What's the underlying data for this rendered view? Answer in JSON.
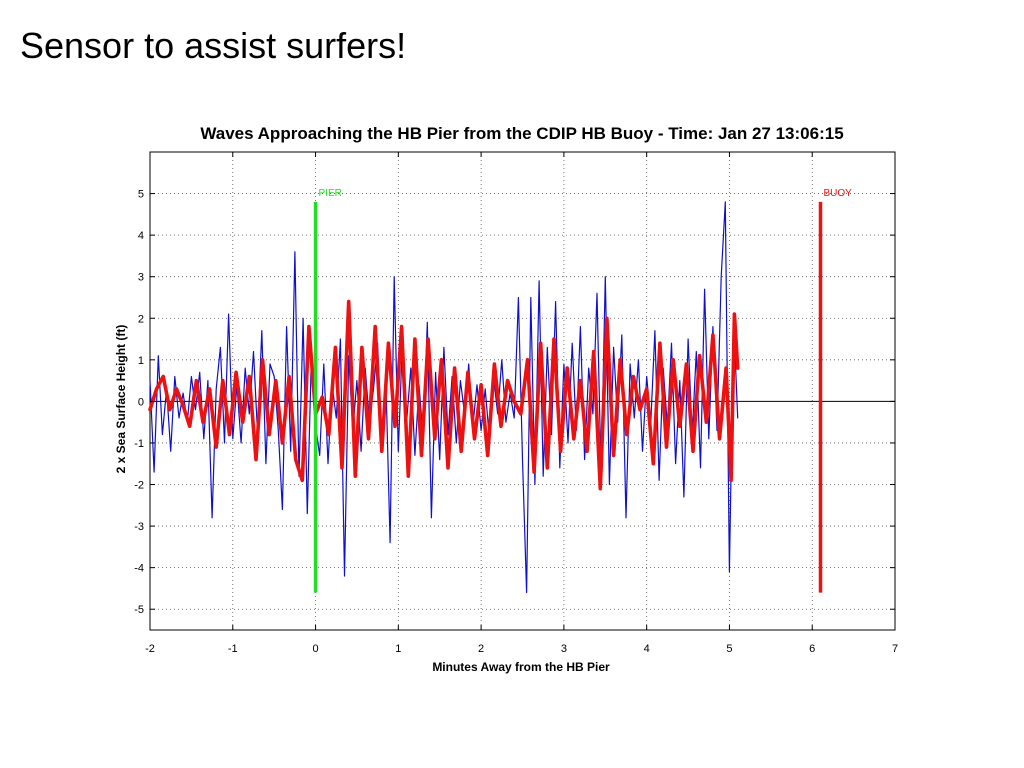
{
  "slide": {
    "title": "Sensor to assist surfers!"
  },
  "chart_data": {
    "type": "line",
    "title": "Waves Approaching the HB Pier from the CDIP HB Buoy  -  Time: Jan 27 13:06:15",
    "xlabel": "Minutes Away from the HB Pier",
    "ylabel": "2 x Sea Surface Height  (ft)",
    "xlim": [
      -2,
      7
    ],
    "ylim": [
      -5.5,
      6.0
    ],
    "xticks": [
      -2,
      -1,
      0,
      1,
      2,
      3,
      4,
      5,
      6,
      7
    ],
    "yticks": [
      -5,
      -4,
      -3,
      -2,
      -1,
      0,
      1,
      2,
      3,
      4,
      5
    ],
    "grid": true,
    "zero_line": true,
    "colors": {
      "blue_series": "#1010cc",
      "red_series": "#ee1111",
      "pier": "#22dd22",
      "buoy": "#ee1111"
    },
    "series": [
      {
        "color": "#1010cc",
        "points": [
          [
            -2.0,
            0.5
          ],
          [
            -1.95,
            -1.7
          ],
          [
            -1.9,
            1.1
          ],
          [
            -1.85,
            -0.8
          ],
          [
            -1.8,
            0.3
          ],
          [
            -1.75,
            -1.2
          ],
          [
            -1.7,
            0.6
          ],
          [
            -1.65,
            -0.4
          ],
          [
            -1.6,
            0.2
          ],
          [
            -1.55,
            -0.5
          ],
          [
            -1.5,
            0.6
          ],
          [
            -1.45,
            -0.2
          ],
          [
            -1.4,
            0.7
          ],
          [
            -1.35,
            -0.9
          ],
          [
            -1.3,
            0.5
          ],
          [
            -1.25,
            -2.8
          ],
          [
            -1.2,
            0.3
          ],
          [
            -1.15,
            1.3
          ],
          [
            -1.1,
            -1.0
          ],
          [
            -1.05,
            2.1
          ],
          [
            -1.0,
            -0.9
          ],
          [
            -0.95,
            0.4
          ],
          [
            -0.9,
            -1.0
          ],
          [
            -0.85,
            0.8
          ],
          [
            -0.8,
            -0.3
          ],
          [
            -0.75,
            1.2
          ],
          [
            -0.7,
            -0.8
          ],
          [
            -0.65,
            1.7
          ],
          [
            -0.6,
            -1.5
          ],
          [
            -0.55,
            0.9
          ],
          [
            -0.5,
            0.6
          ],
          [
            -0.45,
            -0.7
          ],
          [
            -0.4,
            -2.6
          ],
          [
            -0.35,
            1.8
          ],
          [
            -0.3,
            -1.2
          ],
          [
            -0.25,
            3.6
          ],
          [
            -0.2,
            -1.8
          ],
          [
            -0.15,
            2.0
          ],
          [
            -0.1,
            -2.7
          ],
          [
            -0.05,
            1.1
          ],
          [
            0.0,
            -0.6
          ],
          [
            0.05,
            -1.3
          ],
          [
            0.1,
            0.9
          ],
          [
            0.15,
            -1.5
          ],
          [
            0.2,
            0.4
          ],
          [
            0.25,
            -0.4
          ],
          [
            0.3,
            1.5
          ],
          [
            0.35,
            -4.2
          ],
          [
            0.4,
            1.1
          ],
          [
            0.45,
            -0.7
          ],
          [
            0.5,
            0.5
          ],
          [
            0.55,
            -1.2
          ],
          [
            0.6,
            0.8
          ],
          [
            0.65,
            -0.5
          ],
          [
            0.7,
            0.3
          ],
          [
            0.75,
            1.4
          ],
          [
            0.8,
            -1.1
          ],
          [
            0.85,
            0.5
          ],
          [
            0.9,
            -3.4
          ],
          [
            0.95,
            3.0
          ],
          [
            1.0,
            -1.2
          ],
          [
            1.05,
            1.5
          ],
          [
            1.1,
            -0.5
          ],
          [
            1.15,
            0.8
          ],
          [
            1.2,
            -1.3
          ],
          [
            1.25,
            0.4
          ],
          [
            1.3,
            -0.9
          ],
          [
            1.35,
            1.9
          ],
          [
            1.4,
            -2.8
          ],
          [
            1.45,
            0.7
          ],
          [
            1.5,
            -1.4
          ],
          [
            1.55,
            1.3
          ],
          [
            1.6,
            -0.8
          ],
          [
            1.65,
            0.6
          ],
          [
            1.7,
            -1.0
          ],
          [
            1.75,
            0.5
          ],
          [
            1.8,
            -0.3
          ],
          [
            1.85,
            0.9
          ],
          [
            1.9,
            -0.6
          ],
          [
            1.95,
            0.4
          ],
          [
            2.0,
            -0.7
          ],
          [
            2.05,
            0.3
          ],
          [
            2.1,
            -0.9
          ],
          [
            2.15,
            0.6
          ],
          [
            2.2,
            -0.3
          ],
          [
            2.25,
            1.0
          ],
          [
            2.3,
            -0.5
          ],
          [
            2.35,
            0.2
          ],
          [
            2.4,
            -0.4
          ],
          [
            2.45,
            2.5
          ],
          [
            2.5,
            -1.4
          ],
          [
            2.55,
            -4.6
          ],
          [
            2.6,
            2.5
          ],
          [
            2.65,
            -2.0
          ],
          [
            2.7,
            2.9
          ],
          [
            2.75,
            -1.8
          ],
          [
            2.8,
            1.3
          ],
          [
            2.85,
            -0.8
          ],
          [
            2.9,
            2.4
          ],
          [
            2.95,
            -1.6
          ],
          [
            3.0,
            0.9
          ],
          [
            3.05,
            -1.0
          ],
          [
            3.1,
            1.4
          ],
          [
            3.15,
            -0.7
          ],
          [
            3.2,
            1.8
          ],
          [
            3.25,
            -1.4
          ],
          [
            3.3,
            0.8
          ],
          [
            3.35,
            -0.3
          ],
          [
            3.4,
            2.6
          ],
          [
            3.45,
            -1.8
          ],
          [
            3.5,
            3.0
          ],
          [
            3.55,
            -2.0
          ],
          [
            3.6,
            1.3
          ],
          [
            3.65,
            -0.5
          ],
          [
            3.7,
            1.6
          ],
          [
            3.75,
            -2.8
          ],
          [
            3.8,
            0.9
          ],
          [
            3.85,
            -0.4
          ],
          [
            3.9,
            1.0
          ],
          [
            3.95,
            -1.2
          ],
          [
            4.0,
            0.6
          ],
          [
            4.05,
            -0.5
          ],
          [
            4.1,
            1.7
          ],
          [
            4.15,
            -1.9
          ],
          [
            4.2,
            0.8
          ],
          [
            4.25,
            -0.6
          ],
          [
            4.3,
            1.4
          ],
          [
            4.35,
            -1.5
          ],
          [
            4.4,
            0.5
          ],
          [
            4.45,
            -2.3
          ],
          [
            4.5,
            1.5
          ],
          [
            4.55,
            -0.8
          ],
          [
            4.6,
            1.2
          ],
          [
            4.65,
            -1.6
          ],
          [
            4.7,
            2.7
          ],
          [
            4.75,
            -0.9
          ],
          [
            4.8,
            1.8
          ],
          [
            4.85,
            -0.7
          ],
          [
            4.9,
            3.0
          ],
          [
            4.95,
            4.8
          ],
          [
            5.0,
            -4.1
          ],
          [
            5.05,
            2.0
          ],
          [
            5.1,
            -0.4
          ]
        ]
      },
      {
        "color": "#ee1111",
        "points": [
          [
            -2.0,
            -0.2
          ],
          [
            -1.92,
            0.3
          ],
          [
            -1.84,
            0.6
          ],
          [
            -1.76,
            -0.2
          ],
          [
            -1.68,
            0.3
          ],
          [
            -1.6,
            -0.1
          ],
          [
            -1.52,
            -0.6
          ],
          [
            -1.44,
            0.5
          ],
          [
            -1.36,
            -0.5
          ],
          [
            -1.28,
            0.3
          ],
          [
            -1.2,
            -1.1
          ],
          [
            -1.12,
            0.5
          ],
          [
            -1.04,
            -0.8
          ],
          [
            -0.96,
            0.7
          ],
          [
            -0.88,
            -0.5
          ],
          [
            -0.8,
            0.6
          ],
          [
            -0.72,
            -1.4
          ],
          [
            -0.64,
            1.0
          ],
          [
            -0.56,
            -0.8
          ],
          [
            -0.48,
            0.5
          ],
          [
            -0.4,
            -1.0
          ],
          [
            -0.32,
            0.6
          ],
          [
            -0.24,
            -1.4
          ],
          [
            -0.16,
            -1.9
          ],
          [
            -0.08,
            1.8
          ],
          [
            0.0,
            -0.3
          ],
          [
            0.08,
            0.1
          ],
          [
            0.16,
            -0.8
          ],
          [
            0.24,
            1.3
          ],
          [
            0.32,
            -1.6
          ],
          [
            0.4,
            2.4
          ],
          [
            0.48,
            -1.8
          ],
          [
            0.56,
            1.3
          ],
          [
            0.64,
            -0.9
          ],
          [
            0.72,
            1.8
          ],
          [
            0.8,
            -1.2
          ],
          [
            0.88,
            1.4
          ],
          [
            0.96,
            -0.6
          ],
          [
            1.04,
            1.8
          ],
          [
            1.12,
            -1.8
          ],
          [
            1.2,
            1.5
          ],
          [
            1.28,
            -1.3
          ],
          [
            1.36,
            1.5
          ],
          [
            1.44,
            -0.9
          ],
          [
            1.52,
            1.0
          ],
          [
            1.6,
            -1.6
          ],
          [
            1.68,
            0.8
          ],
          [
            1.76,
            -1.2
          ],
          [
            1.84,
            0.7
          ],
          [
            1.92,
            -0.9
          ],
          [
            2.0,
            0.4
          ],
          [
            2.08,
            -1.3
          ],
          [
            2.16,
            0.9
          ],
          [
            2.24,
            -0.6
          ],
          [
            2.32,
            0.5
          ],
          [
            2.4,
            0.0
          ],
          [
            2.48,
            -0.3
          ],
          [
            2.56,
            1.0
          ],
          [
            2.64,
            -1.7
          ],
          [
            2.72,
            1.4
          ],
          [
            2.8,
            -1.6
          ],
          [
            2.88,
            1.5
          ],
          [
            2.96,
            -1.2
          ],
          [
            3.04,
            0.8
          ],
          [
            3.12,
            -0.9
          ],
          [
            3.2,
            0.5
          ],
          [
            3.28,
            -1.2
          ],
          [
            3.36,
            1.2
          ],
          [
            3.44,
            -2.1
          ],
          [
            3.52,
            2.0
          ],
          [
            3.6,
            -1.3
          ],
          [
            3.68,
            1.0
          ],
          [
            3.76,
            -0.8
          ],
          [
            3.84,
            0.6
          ],
          [
            3.92,
            -0.2
          ],
          [
            4.0,
            0.3
          ],
          [
            4.08,
            -1.5
          ],
          [
            4.16,
            1.4
          ],
          [
            4.24,
            -1.1
          ],
          [
            4.32,
            1.0
          ],
          [
            4.4,
            -0.6
          ],
          [
            4.48,
            0.9
          ],
          [
            4.56,
            -1.2
          ],
          [
            4.64,
            1.1
          ],
          [
            4.72,
            -0.5
          ],
          [
            4.8,
            1.6
          ],
          [
            4.88,
            -0.9
          ],
          [
            4.96,
            0.8
          ],
          [
            5.02,
            -1.9
          ],
          [
            5.06,
            2.1
          ],
          [
            5.1,
            0.8
          ]
        ]
      }
    ],
    "markers": [
      {
        "label": "PIER",
        "x": 0.0,
        "y_range": [
          -4.6,
          4.8
        ],
        "color": "#22dd22"
      },
      {
        "label": "BUOY",
        "x": 6.1,
        "y_range": [
          -4.6,
          4.8
        ],
        "color": "#ee1111"
      }
    ]
  }
}
